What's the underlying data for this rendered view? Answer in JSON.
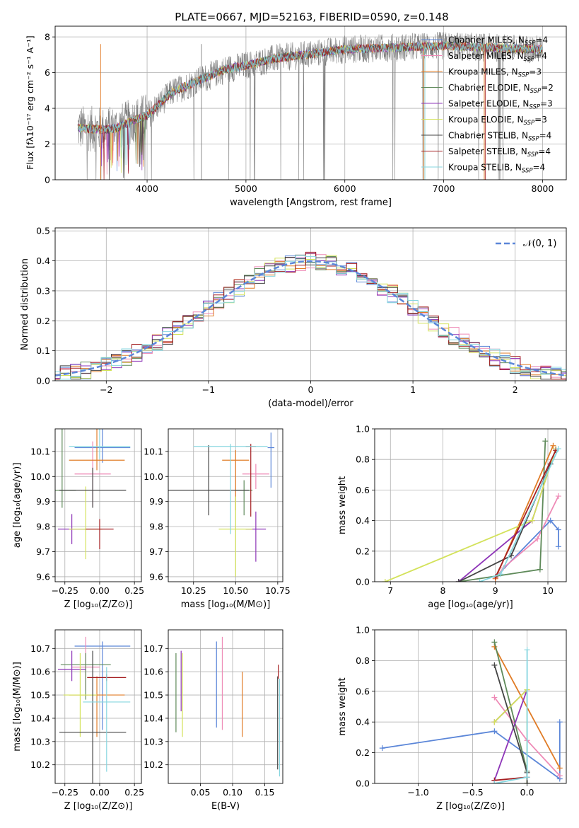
{
  "title": "PLATE=0667, MJD=52163, FIBERID=0590, z=0.148",
  "colors": {
    "Chabrier MILES": "#5b86d8",
    "Salpeter MILES": "#ee8ab6",
    "Kroupa MILES": "#e07b25",
    "Chabrier ELODIE": "#5f8a5a",
    "Salpeter ELODIE": "#8e35b8",
    "Kroupa ELODIE": "#d3e25a",
    "Chabrier STELIB": "#444444",
    "Salpeter STELIB": "#a51f22",
    "Kroupa STELIB": "#86d6df",
    "data": "#808080"
  },
  "chart_data": [
    {
      "type": "line",
      "name": "spectrum",
      "xlabel": "wavelength [Angstrom, rest frame]",
      "ylabel": "Flux [fλ10⁻¹⁷ erg cm⁻² s⁻¹ A⁻¹]",
      "xlim": [
        3070,
        8240
      ],
      "ylim": [
        0,
        8.6
      ],
      "xticks": [
        "4000",
        "5000",
        "6000",
        "7000",
        "8000"
      ],
      "yticks": [
        "0",
        "2",
        "4",
        "6",
        "8"
      ],
      "legend": [
        {
          "label": "Chabrier MILES, N",
          "sub": "SSP",
          "rest": "=4"
        },
        {
          "label": "Salpeter MILES, N",
          "sub": "SSP",
          "rest": "=4"
        },
        {
          "label": "Kroupa MILES, N",
          "sub": "SSP",
          "rest": "=3"
        },
        {
          "label": "Chabrier ELODIE, N",
          "sub": "SSP",
          "rest": "=2"
        },
        {
          "label": "Salpeter ELODIE, N",
          "sub": "SSP",
          "rest": "=3"
        },
        {
          "label": "Kroupa ELODIE, N",
          "sub": "SSP",
          "rest": "=3"
        },
        {
          "label": "Chabrier STELIB, N",
          "sub": "SSP",
          "rest": "=4"
        },
        {
          "label": "Salpeter STELIB, N",
          "sub": "SSP",
          "rest": "=4"
        },
        {
          "label": "Kroupa STELIB, N",
          "sub": "SSP",
          "rest": "=4"
        }
      ],
      "continuum": {
        "x": [
          3300,
          3550,
          3700,
          3850,
          4000,
          4250,
          4500,
          4800,
          5000,
          5300,
          5600,
          6000,
          6500,
          7000,
          7500,
          8000
        ],
        "y": [
          2.9,
          2.8,
          2.9,
          3.3,
          3.6,
          4.9,
          5.5,
          6.2,
          6.4,
          6.8,
          7.0,
          7.3,
          7.4,
          7.5,
          7.4,
          7.3
        ]
      }
    },
    {
      "type": "line",
      "name": "residual-histogram",
      "xlabel": "(data-model)/error",
      "ylabel": "Normed distribution",
      "xlim": [
        -2.5,
        2.5
      ],
      "ylim": [
        0,
        0.51
      ],
      "xticks": [
        "−2",
        "−1",
        "0",
        "1",
        "2"
      ],
      "yticks": [
        "0.0",
        "0.1",
        "0.2",
        "0.3",
        "0.4",
        "0.5"
      ],
      "legend_label": "𝒩(0, 1)",
      "gaussian": {
        "mu": 0,
        "sigma": 1
      }
    },
    {
      "type": "scatter",
      "name": "age-vs-Z",
      "xlabel": "Z [log₁₀(Z/Z⊙)]",
      "ylabel": "age [log₁₀(age/yr)]",
      "xlim": [
        -0.32,
        0.3
      ],
      "ylim": [
        9.58,
        10.19
      ],
      "xticks": [
        "−0.25",
        "0.00",
        "0.25"
      ],
      "yticks": [
        "9.6",
        "9.7",
        "9.8",
        "9.9",
        "10.0",
        "10.1"
      ],
      "points": [
        {
          "s": "Chabrier MILES",
          "x": 0.02,
          "y": 10.115,
          "xerr": 0.2,
          "yerr": [
            0.06,
            0.2
          ]
        },
        {
          "s": "Salpeter MILES",
          "x": -0.05,
          "y": 10.01,
          "xerr": 0.13,
          "yerr": [
            0.13,
            0.13
          ]
        },
        {
          "s": "Kroupa MILES",
          "x": -0.02,
          "y": 10.065,
          "xerr": 0.2,
          "yerr": [
            0.04,
            0.24
          ]
        },
        {
          "s": "Chabrier ELODIE",
          "x": -0.27,
          "y": 9.945,
          "xerr": 0.1,
          "yerr": [
            0.07,
            0.29
          ]
        },
        {
          "s": "Salpeter ELODIE",
          "x": -0.2,
          "y": 9.79,
          "xerr": 0.1,
          "yerr": [
            0.06,
            0.06
          ]
        },
        {
          "s": "Kroupa ELODIE",
          "x": -0.1,
          "y": 9.79,
          "xerr": 0.12,
          "yerr": [
            0.12,
            0.17
          ]
        },
        {
          "s": "Chabrier STELIB",
          "x": -0.05,
          "y": 9.945,
          "xerr": 0.24,
          "yerr": [
            0.07,
            0.09
          ]
        },
        {
          "s": "Salpeter STELIB",
          "x": 0.0,
          "y": 9.79,
          "xerr": 0.1,
          "yerr": [
            0.08,
            0.04
          ]
        },
        {
          "s": "Kroupa STELIB",
          "x": 0.0,
          "y": 10.12,
          "xerr": 0.22,
          "yerr": [
            0.05,
            0.14
          ]
        }
      ]
    },
    {
      "type": "scatter",
      "name": "age-vs-mass",
      "xlabel": "mass [log₁₀(M/M⊙)]",
      "ylabel": "",
      "xlim": [
        10.1,
        10.78
      ],
      "ylim": [
        9.58,
        10.19
      ],
      "xticks": [
        "10.25",
        "10.50",
        "10.75"
      ],
      "yticks": [
        "9.6",
        "9.7",
        "9.8",
        "9.9",
        "10.0",
        "10.1"
      ],
      "points": [
        {
          "s": "Chabrier MILES",
          "x": 10.71,
          "y": 10.115,
          "xerr": 0.02,
          "yerr": [
            0.16,
            0.06
          ]
        },
        {
          "s": "Salpeter MILES",
          "x": 10.62,
          "y": 10.01,
          "xerr": 0.08,
          "yerr": [
            0.06,
            0.04
          ]
        },
        {
          "s": "Kroupa MILES",
          "x": 10.5,
          "y": 10.065,
          "xerr": 0.08,
          "yerr": [
            0.2,
            0.04
          ]
        },
        {
          "s": "Chabrier ELODIE",
          "x": 10.55,
          "y": 9.945,
          "xerr": 0.05,
          "yerr": [
            0.1,
            0.04
          ]
        },
        {
          "s": "Salpeter ELODIE",
          "x": 10.62,
          "y": 9.79,
          "xerr": 0.06,
          "yerr": [
            0.13,
            0.07
          ]
        },
        {
          "s": "Kroupa ELODIE",
          "x": 10.5,
          "y": 9.79,
          "xerr": 0.1,
          "yerr": [
            0.19,
            0.13
          ]
        },
        {
          "s": "Chabrier STELIB",
          "x": 10.34,
          "y": 9.945,
          "xerr": 0.24,
          "yerr": [
            0.1,
            0.18
          ]
        },
        {
          "s": "Salpeter STELIB",
          "x": 10.59,
          "y": 10.12,
          "xerr": 0.03,
          "yerr": [
            0.28,
            0.01
          ]
        },
        {
          "s": "Kroupa STELIB",
          "x": 10.47,
          "y": 10.12,
          "xerr": 0.22,
          "yerr": [
            0.35,
            0.01
          ]
        }
      ]
    },
    {
      "type": "line",
      "name": "mass-weight-vs-age",
      "xlabel": "age [log₁₀(age/yr)]",
      "ylabel": "mass weight",
      "xlim": [
        6.7,
        10.35
      ],
      "ylim": [
        0,
        1
      ],
      "xticks": [
        "7",
        "8",
        "9",
        "10"
      ],
      "yticks": [
        "0.0",
        "0.2",
        "0.4",
        "0.6",
        "0.8",
        "1.0"
      ],
      "series": [
        {
          "s": "Chabrier MILES",
          "x": [
            9.0,
            10.05,
            10.2,
            10.2
          ],
          "y": [
            0.03,
            0.4,
            0.34,
            0.23
          ]
        },
        {
          "s": "Salpeter MILES",
          "x": [
            9.0,
            9.15,
            9.8,
            10.2
          ],
          "y": [
            0.02,
            0.09,
            0.28,
            0.56
          ]
        },
        {
          "s": "Kroupa MILES",
          "x": [
            9.0,
            10.1
          ],
          "y": [
            0.02,
            0.89
          ]
        },
        {
          "s": "Chabrier ELODIE",
          "x": [
            8.3,
            9.85,
            9.95
          ],
          "y": [
            0.0,
            0.08,
            0.92
          ]
        },
        {
          "s": "Salpeter ELODIE",
          "x": [
            8.3,
            9.7,
            10.15
          ],
          "y": [
            0.0,
            0.4,
            0.87
          ]
        },
        {
          "s": "Kroupa ELODIE",
          "x": [
            6.9,
            9.7,
            10.15
          ],
          "y": [
            0.0,
            0.4,
            0.87
          ]
        },
        {
          "s": "Chabrier STELIB",
          "x": [
            8.3,
            9.3,
            10.05
          ],
          "y": [
            0.0,
            0.17,
            0.77
          ]
        },
        {
          "s": "Salpeter STELIB",
          "x": [
            9.0,
            10.15
          ],
          "y": [
            0.03,
            0.86
          ]
        },
        {
          "s": "Kroupa STELIB",
          "x": [
            8.7,
            9.1,
            10.2
          ],
          "y": [
            0.0,
            0.05,
            0.87
          ]
        }
      ]
    },
    {
      "type": "scatter",
      "name": "mass-vs-Z",
      "xlabel": "Z [log₁₀(Z/Z⊙)]",
      "ylabel": "mass [log₁₀(M/M⊙)]",
      "xlim": [
        -0.32,
        0.3
      ],
      "ylim": [
        10.12,
        10.78
      ],
      "xticks": [
        "−0.25",
        "0.00",
        "0.25"
      ],
      "yticks": [
        "10.2",
        "10.3",
        "10.4",
        "10.5",
        "10.6",
        "10.7"
      ],
      "points": [
        {
          "s": "Chabrier MILES",
          "x": 0.02,
          "y": 10.71,
          "xerr": 0.2,
          "yerr": [
            0.36,
            0.02
          ]
        },
        {
          "s": "Salpeter MILES",
          "x": -0.1,
          "y": 10.62,
          "xerr": 0.1,
          "yerr": [
            0.1,
            0.13
          ]
        },
        {
          "s": "Kroupa MILES",
          "x": -0.02,
          "y": 10.5,
          "xerr": 0.2,
          "yerr": [
            0.18,
            0.08
          ]
        },
        {
          "s": "Chabrier ELODIE",
          "x": -0.1,
          "y": 10.63,
          "xerr": 0.18,
          "yerr": [
            0.15,
            0.05
          ]
        },
        {
          "s": "Salpeter ELODIE",
          "x": -0.2,
          "y": 10.61,
          "xerr": 0.1,
          "yerr": [
            0.05,
            0.08
          ]
        },
        {
          "s": "Kroupa ELODIE",
          "x": -0.14,
          "y": 10.5,
          "xerr": 0.12,
          "yerr": [
            0.18,
            0.18
          ]
        },
        {
          "s": "Chabrier STELIB",
          "x": -0.05,
          "y": 10.34,
          "xerr": 0.24,
          "yerr": [
            0.24,
            0.35
          ]
        },
        {
          "s": "Salpeter STELIB",
          "x": 0.05,
          "y": 10.575,
          "xerr": 0.14,
          "yerr": [
            0.015,
            0.015
          ]
        },
        {
          "s": "Kroupa STELIB",
          "x": 0.05,
          "y": 10.47,
          "xerr": 0.17,
          "yerr": [
            0.3,
            0.15
          ]
        }
      ]
    },
    {
      "type": "scatter",
      "name": "mass-vs-EBV",
      "xlabel": "E(B-V)",
      "ylabel": "",
      "xlim": [
        0.0,
        0.178
      ],
      "ylim": [
        10.12,
        10.78
      ],
      "xticks": [
        "0.05",
        "0.10",
        "0.15"
      ],
      "yticks": [
        "10.2",
        "10.3",
        "10.4",
        "10.5",
        "10.6",
        "10.7"
      ],
      "points": [
        {
          "s": "Chabrier MILES",
          "x": 0.075,
          "y": 10.55,
          "yerr": [
            0.19,
            0.18
          ]
        },
        {
          "s": "Salpeter MILES",
          "x": 0.084,
          "y": 10.55,
          "yerr": [
            0.2,
            0.2
          ]
        },
        {
          "s": "Kroupa MILES",
          "x": 0.115,
          "y": 10.46,
          "yerr": [
            0.14,
            0.14
          ]
        },
        {
          "s": "Chabrier ELODIE",
          "x": 0.012,
          "y": 10.51,
          "yerr": [
            0.17,
            0.17
          ]
        },
        {
          "s": "Salpeter ELODIE",
          "x": 0.02,
          "y": 10.56,
          "yerr": [
            0.13,
            0.13
          ]
        },
        {
          "s": "Kroupa ELODIE",
          "x": 0.022,
          "y": 10.5,
          "yerr": [
            0.18,
            0.18
          ]
        },
        {
          "s": "Chabrier STELIB",
          "x": 0.17,
          "y": 10.38,
          "yerr": [
            0.2,
            0.2
          ]
        },
        {
          "s": "Salpeter STELIB",
          "x": 0.171,
          "y": 10.6,
          "yerr": [
            0.03,
            0.03
          ]
        },
        {
          "s": "Kroupa STELIB",
          "x": 0.173,
          "y": 10.36,
          "yerr": [
            0.21,
            0.21
          ]
        }
      ]
    },
    {
      "type": "line",
      "name": "mass-weight-vs-Z",
      "xlabel": "Z [log₁₀(Z/Z⊙)]",
      "ylabel": "mass weight",
      "xlim": [
        -1.4,
        0.36
      ],
      "ylim": [
        0,
        1
      ],
      "xticks": [
        "−1.0",
        "−0.5",
        "0.0"
      ],
      "yticks": [
        "0.0",
        "0.2",
        "0.4",
        "0.6",
        "0.8",
        "1.0"
      ],
      "series": [
        {
          "s": "Chabrier MILES",
          "x": [
            -1.33,
            -0.3,
            0.3,
            0.3
          ],
          "y": [
            0.23,
            0.34,
            0.03,
            0.4
          ]
        },
        {
          "s": "Salpeter MILES",
          "x": [
            -0.3,
            0.0,
            0.3
          ],
          "y": [
            0.56,
            0.28,
            0.05
          ]
        },
        {
          "s": "Kroupa MILES",
          "x": [
            -0.3,
            0.3
          ],
          "y": [
            0.89,
            0.1
          ]
        },
        {
          "s": "Chabrier ELODIE",
          "x": [
            -0.3,
            0.0,
            0.0
          ],
          "y": [
            0.92,
            0.08,
            0.0
          ]
        },
        {
          "s": "Salpeter ELODIE",
          "x": [
            -0.3,
            0.0,
            -0.3
          ],
          "y": [
            0.02,
            0.61,
            0.4
          ]
        },
        {
          "s": "Kroupa ELODIE",
          "x": [
            -0.3,
            0.0,
            0.0
          ],
          "y": [
            0.4,
            0.61,
            0.0
          ]
        },
        {
          "s": "Chabrier STELIB",
          "x": [
            -0.3,
            0.0,
            0.0
          ],
          "y": [
            0.77,
            0.07,
            0.0
          ]
        },
        {
          "s": "Salpeter STELIB",
          "x": [
            -0.3,
            0.0
          ],
          "y": [
            0.02,
            0.04
          ]
        },
        {
          "s": "Kroupa STELIB",
          "x": [
            -0.3,
            0.0,
            0.0
          ],
          "y": [
            0.0,
            0.04,
            0.87
          ]
        }
      ]
    }
  ]
}
